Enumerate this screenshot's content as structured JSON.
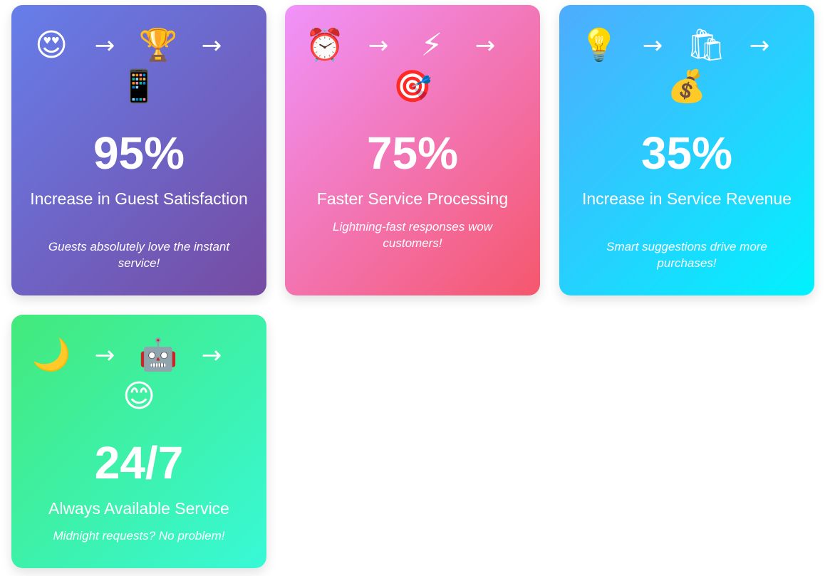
{
  "cards": [
    {
      "icons": [
        "😍",
        "🏆",
        "📱"
      ],
      "icon_names": [
        "heart-eyes-icon",
        "trophy-icon",
        "mobile-phone-icon"
      ],
      "arrow": "→",
      "stat": "95%",
      "label": "Increase in Guest Satisfaction",
      "description": "Guests absolutely love the instant service!",
      "gradient": [
        "#667eea",
        "#764ba2"
      ]
    },
    {
      "icons": [
        "⏰",
        "⚡",
        "🎯"
      ],
      "icon_names": [
        "alarm-clock-icon",
        "lightning-icon",
        "target-icon"
      ],
      "arrow": "→",
      "stat": "75%",
      "label": "Faster Service Processing",
      "description": "Lightning-fast responses wow customers!",
      "gradient": [
        "#f093fb",
        "#f5576c"
      ]
    },
    {
      "icons": [
        "💡",
        "🛍",
        "💰"
      ],
      "icon_names": [
        "light-bulb-icon",
        "shopping-bags-icon",
        "money-bag-icon"
      ],
      "arrow": "→",
      "stat": "35%",
      "label": "Increase in Service Revenue",
      "description": "Smart suggestions drive more purchases!",
      "gradient": [
        "#4facfe",
        "#00f2fe"
      ]
    },
    {
      "icons": [
        "🌙",
        "🤖",
        "😊"
      ],
      "icon_names": [
        "crescent-moon-icon",
        "robot-icon",
        "smiling-face-icon"
      ],
      "arrow": "→",
      "stat": "24/7",
      "label": "Always Available Service",
      "description": "Midnight requests? No problem!",
      "gradient": [
        "#43e97b",
        "#38f9d7"
      ]
    }
  ]
}
